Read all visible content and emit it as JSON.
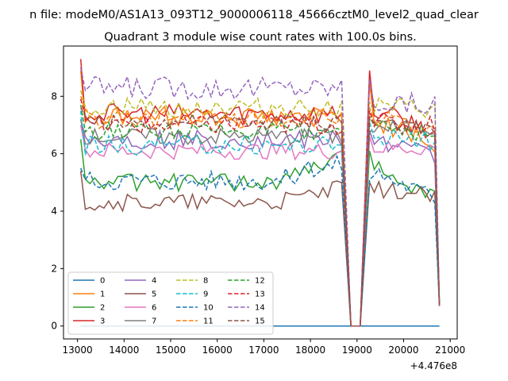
{
  "suptitle": "n file: modeM0/AS1A13_093T12_9000006118_45666cztM0_level2_quad_clear",
  "chart_data": {
    "type": "line",
    "title": "Quadrant 3 module wise count rates with 100.0s bins.",
    "xlabel": "",
    "ylabel": "",
    "x_offset_label": "+4.476e8",
    "xlim": [
      12700,
      21150
    ],
    "ylim": [
      -0.45,
      9.75
    ],
    "xticks": [
      13000,
      14000,
      15000,
      16000,
      17000,
      18000,
      19000,
      20000,
      21000
    ],
    "xtick_labels": [
      "13000",
      "14000",
      "15000",
      "16000",
      "17000",
      "18000",
      "19000",
      "20000",
      "21000"
    ],
    "yticks": [
      0,
      2,
      4,
      6,
      8
    ],
    "ytick_labels": [
      "0",
      "2",
      "4",
      "6",
      "8"
    ],
    "x_start": 13069,
    "x_step": 100,
    "gap_points": [
      [
        18669,
        8.0
      ],
      [
        18869,
        0
      ],
      [
        19069,
        0
      ],
      [
        19269,
        8.5
      ]
    ],
    "x_end": 20769,
    "grid": false,
    "legend_placement": "lower-left",
    "legend_columns": 4,
    "series": [
      {
        "name": "0",
        "color": "#1f77b4",
        "dash": "solid",
        "flat": 0,
        "level": 0,
        "amp": 0
      },
      {
        "name": "1",
        "color": "#ff7f0e",
        "dash": "solid",
        "start": 8.9,
        "level": 7.3,
        "amp": 0.35,
        "post": 7.2,
        "end": 6.3
      },
      {
        "name": "2",
        "color": "#2ca02c",
        "dash": "solid",
        "start": 6.5,
        "level": 5.0,
        "amp": 0.3,
        "rise_to": 5.9,
        "post": 5.6,
        "end": 4.5
      },
      {
        "name": "3",
        "color": "#d62728",
        "dash": "solid",
        "start": 9.3,
        "level": 7.4,
        "amp": 0.35,
        "post": 7.5,
        "end": 6.8
      },
      {
        "name": "4",
        "color": "#9467bd",
        "dash": "solid",
        "start": 7.2,
        "level": 6.5,
        "amp": 0.35,
        "post": 6.5,
        "end": 5.9
      },
      {
        "name": "5",
        "color": "#8c564b",
        "dash": "solid",
        "start": 5.4,
        "level": 4.3,
        "amp": 0.3,
        "rise_to": 4.8,
        "post": 4.8,
        "end": 4.5
      },
      {
        "name": "6",
        "color": "#e377c2",
        "dash": "solid",
        "start": 7.0,
        "level": 6.1,
        "amp": 0.3,
        "post": 6.2,
        "end": 6.2
      },
      {
        "name": "7",
        "color": "#7f7f7f",
        "dash": "solid",
        "start": 7.2,
        "level": 6.6,
        "amp": 0.3,
        "post": 6.9,
        "end": 6.9
      },
      {
        "name": "8",
        "color": "#bcbd22",
        "dash": "dashed",
        "start": 8.2,
        "level": 7.6,
        "amp": 0.35,
        "post": 7.6,
        "end": 7.5
      },
      {
        "name": "9",
        "color": "#17becf",
        "dash": "dashed",
        "start": 7.5,
        "level": 6.3,
        "amp": 0.35,
        "post": 6.7,
        "end": 6.4
      },
      {
        "name": "10",
        "color": "#1f77b4",
        "dash": "dashed",
        "start": 5.5,
        "level": 5.1,
        "amp": 0.35,
        "rise_to": 5.7,
        "post": 5.4,
        "end": 4.5
      },
      {
        "name": "11",
        "color": "#ff7f0e",
        "dash": "dashed",
        "start": 8.0,
        "level": 7.2,
        "amp": 0.35,
        "post": 7.3,
        "end": 6.6
      },
      {
        "name": "12",
        "color": "#2ca02c",
        "dash": "dashed",
        "start": 7.7,
        "level": 6.8,
        "amp": 0.3,
        "post": 7.1,
        "end": 6.6
      },
      {
        "name": "13",
        "color": "#d62728",
        "dash": "dashed",
        "start": 7.9,
        "level": 7.0,
        "amp": 0.35,
        "post": 7.1,
        "end": 7.0
      },
      {
        "name": "14",
        "color": "#9467bd",
        "dash": "dashed",
        "start": 9.0,
        "level": 8.3,
        "amp": 0.4,
        "post": 7.8,
        "end": 7.7
      },
      {
        "name": "15",
        "color": "#8c564b",
        "dash": "dashed",
        "start": 7.6,
        "level": 7.1,
        "amp": 0.3,
        "post": 7.2,
        "end": 6.7
      }
    ]
  }
}
